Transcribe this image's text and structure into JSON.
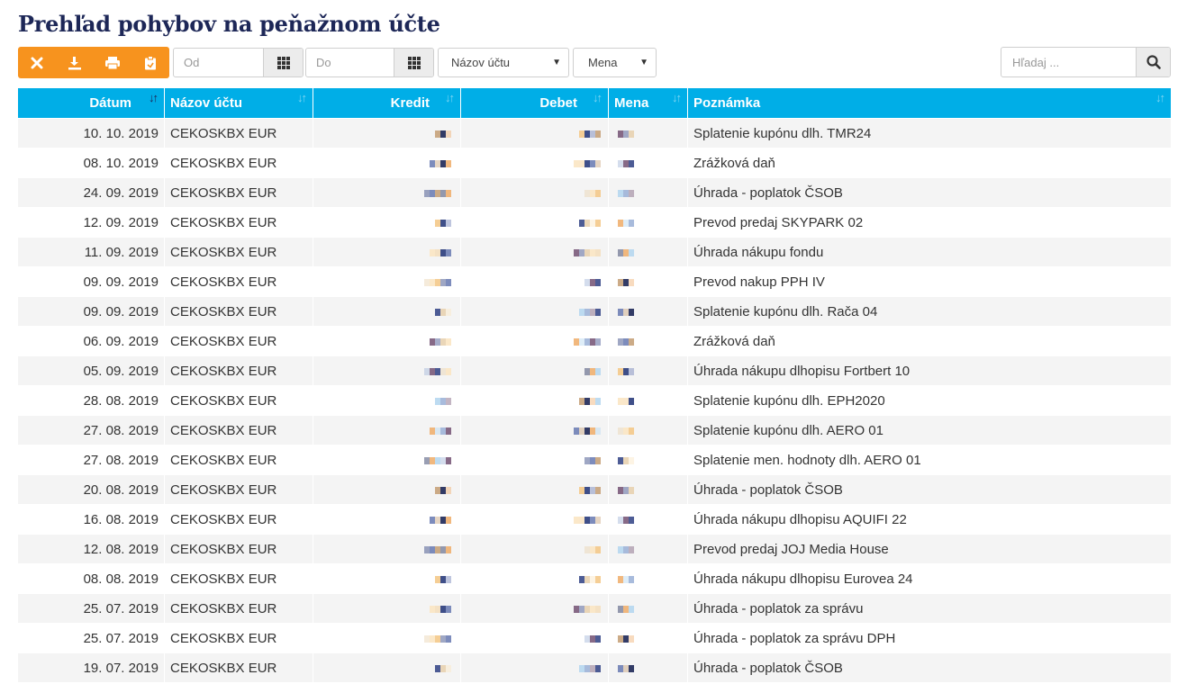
{
  "page": {
    "title": "Prehľad pohybov na peňažnom účte"
  },
  "toolbar": {
    "buttons": [
      {
        "name": "clear-filter-button",
        "icon": "close-icon"
      },
      {
        "name": "download-button",
        "icon": "download-icon"
      },
      {
        "name": "print-button",
        "icon": "print-icon"
      },
      {
        "name": "export-button",
        "icon": "clipboard-icon"
      }
    ],
    "accent_color": "#f7931e"
  },
  "filters": {
    "date_from_placeholder": "Od",
    "date_to_placeholder": "Do",
    "account_select": "Názov účtu",
    "currency_select": "Mena",
    "search_placeholder": "Hľadaj ..."
  },
  "table": {
    "header_color": "#00aee7",
    "columns": {
      "date": "Dátum",
      "account": "Názov účtu",
      "credit": "Kredit",
      "debit": "Debet",
      "currency": "Mena",
      "note": "Poznámka"
    },
    "rows": [
      {
        "date": "10. 10. 2019",
        "account": "CEKOSKBX EUR",
        "note": "Splatenie kupónu dlh. TMR24"
      },
      {
        "date": "08. 10. 2019",
        "account": "CEKOSKBX EUR",
        "note": "Zrážková daň"
      },
      {
        "date": "24. 09. 2019",
        "account": "CEKOSKBX EUR",
        "note": "Úhrada - poplatok ČSOB"
      },
      {
        "date": "12. 09. 2019",
        "account": "CEKOSKBX EUR",
        "note": "Prevod predaj SKYPARK 02"
      },
      {
        "date": "11. 09. 2019",
        "account": "CEKOSKBX EUR",
        "note": "Úhrada nákupu fondu"
      },
      {
        "date": "09. 09. 2019",
        "account": "CEKOSKBX EUR",
        "note": "Prevod nakup PPH IV"
      },
      {
        "date": "09. 09. 2019",
        "account": "CEKOSKBX EUR",
        "note": "Splatenie kupónu dlh. Rača 04"
      },
      {
        "date": "06. 09. 2019",
        "account": "CEKOSKBX EUR",
        "note": "Zrážková daň"
      },
      {
        "date": "05. 09. 2019",
        "account": "CEKOSKBX EUR",
        "note": "Úhrada nákupu dlhopisu Fortbert 10"
      },
      {
        "date": "28. 08. 2019",
        "account": "CEKOSKBX EUR",
        "note": "Splatenie kupónu dlh. EPH2020"
      },
      {
        "date": "27. 08. 2019",
        "account": "CEKOSKBX EUR",
        "note": "Splatenie kupónu dlh. AERO 01"
      },
      {
        "date": "27. 08. 2019",
        "account": "CEKOSKBX EUR",
        "note": "Splatenie men. hodnoty dlh. AERO 01"
      },
      {
        "date": "20. 08. 2019",
        "account": "CEKOSKBX EUR",
        "note": "Úhrada - poplatok ČSOB"
      },
      {
        "date": "16. 08. 2019",
        "account": "CEKOSKBX EUR",
        "note": "Úhrada nákupu dlhopisu AQUIFI 22"
      },
      {
        "date": "12. 08. 2019",
        "account": "CEKOSKBX EUR",
        "note": "Prevod predaj JOJ Media House"
      },
      {
        "date": "08. 08. 2019",
        "account": "CEKOSKBX EUR",
        "note": "Úhrada nákupu dlhopisu Eurovea 24"
      },
      {
        "date": "25. 07. 2019",
        "account": "CEKOSKBX EUR",
        "note": "Úhrada - poplatok za správu"
      },
      {
        "date": "25. 07. 2019",
        "account": "CEKOSKBX EUR",
        "note": "Úhrada - poplatok za správu DPH"
      },
      {
        "date": "19. 07. 2019",
        "account": "CEKOSKBX EUR",
        "note": "Úhrada - poplatok ČSOB"
      }
    ]
  }
}
